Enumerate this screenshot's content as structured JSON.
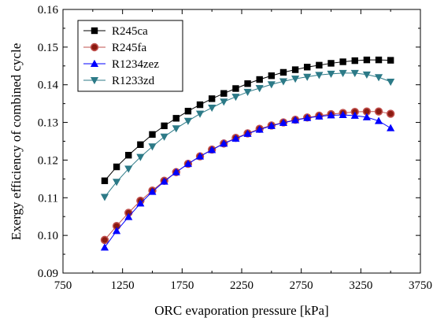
{
  "chart_data": {
    "type": "line",
    "xlabel": "ORC evaporation pressure [kPa]",
    "ylabel": "Exergy efficiency of combined cycle",
    "xlim": [
      750,
      3750
    ],
    "ylim": [
      0.09,
      0.16
    ],
    "xticks": [
      "750",
      "1250",
      "1750",
      "2250",
      "2750",
      "3250",
      "3750"
    ],
    "yticks": [
      "0.09",
      "0.10",
      "0.11",
      "0.12",
      "0.13",
      "0.14",
      "0.15",
      "0.16"
    ],
    "grid": false,
    "legend_position": "top-left",
    "x": [
      1100,
      1200,
      1300,
      1400,
      1500,
      1600,
      1700,
      1800,
      1900,
      2000,
      2100,
      2200,
      2300,
      2400,
      2500,
      2600,
      2700,
      2800,
      2900,
      3000,
      3100,
      3200,
      3300,
      3400,
      3500
    ],
    "series": [
      {
        "name": "R245ca",
        "marker": "square",
        "color": "#000000",
        "marker_fill": "#000000",
        "values": [
          0.1145,
          0.1182,
          0.1213,
          0.1241,
          0.1268,
          0.1291,
          0.1311,
          0.133,
          0.1347,
          0.1363,
          0.1377,
          0.139,
          0.1403,
          0.1414,
          0.1424,
          0.1433,
          0.144,
          0.1447,
          0.1452,
          0.1457,
          0.1461,
          0.1464,
          0.1466,
          0.1466,
          0.1465
        ]
      },
      {
        "name": "R245fa",
        "marker": "circle",
        "color": "#c0504d",
        "marker_fill": "#8b1a10",
        "values": [
          0.0988,
          0.1025,
          0.106,
          0.1092,
          0.1119,
          0.1145,
          0.1168,
          0.119,
          0.121,
          0.1228,
          0.1244,
          0.1259,
          0.1271,
          0.1283,
          0.1292,
          0.13,
          0.1307,
          0.1313,
          0.1318,
          0.1322,
          0.1325,
          0.1328,
          0.1329,
          0.1329,
          0.1323
        ]
      },
      {
        "name": "R1234zez",
        "marker": "triangle-up",
        "color": "#0000ff",
        "marker_fill": "#0000ff",
        "values": [
          0.0968,
          0.1012,
          0.1049,
          0.1085,
          0.1116,
          0.1143,
          0.1168,
          0.119,
          0.121,
          0.1227,
          0.1244,
          0.1257,
          0.127,
          0.1281,
          0.1291,
          0.1299,
          0.1306,
          0.1312,
          0.1316,
          0.1319,
          0.132,
          0.1318,
          0.1314,
          0.1304,
          0.1285
        ]
      },
      {
        "name": "R1233zd",
        "marker": "triangle-down",
        "color": "#2c7a87",
        "marker_fill": "#2c7a87",
        "values": [
          0.1102,
          0.1142,
          0.1177,
          0.1208,
          0.1236,
          0.1262,
          0.1284,
          0.1304,
          0.1323,
          0.1339,
          0.1355,
          0.1368,
          0.1381,
          0.1391,
          0.1401,
          0.1409,
          0.1416,
          0.1421,
          0.1426,
          0.1429,
          0.1431,
          0.1431,
          0.1427,
          0.142,
          0.1408
        ]
      }
    ]
  }
}
